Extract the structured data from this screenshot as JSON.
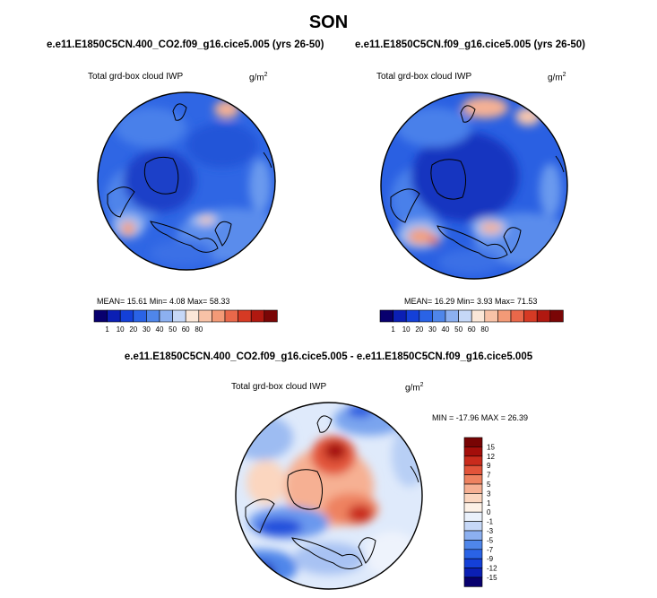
{
  "page_title": "SON",
  "palette": {
    "mean_colors": [
      "#08006e",
      "#0b1fb4",
      "#1440d8",
      "#2a63e6",
      "#4f86ea",
      "#8cb0f0",
      "#c6d8f7",
      "#fbe7d8",
      "#f8c2a7",
      "#f39a77",
      "#e9684a",
      "#d63a24",
      "#b01810",
      "#7a0606"
    ],
    "diff_colors": [
      "#08006e",
      "#0b1fb4",
      "#1440d8",
      "#2a63e6",
      "#4f86ea",
      "#8cb0f0",
      "#c6d8f7",
      "#eaf1fb",
      "#fdf1e6",
      "#fbd6bf",
      "#f6b093",
      "#ee8260",
      "#e2543a",
      "#c92b1c",
      "#a40e0a",
      "#780404"
    ]
  },
  "chart_data": [
    {
      "type": "heatmap",
      "projection": "north-polar-stereographic",
      "title": "e.e11.E1850C5CN.400_CO2.f09_g16.cice5.005 (yrs 26-50)",
      "variable": "Total grd-box cloud IWP",
      "units": "g/m",
      "units_sup": "2",
      "stats": {
        "text": "MEAN=  15.61  Min=   4.08  Max=  58.33",
        "mean": 15.61,
        "min": 4.08,
        "max": 58.33
      },
      "colorbar": {
        "orientation": "horizontal",
        "levels": [
          1,
          10,
          20,
          30,
          40,
          50,
          60,
          80
        ]
      }
    },
    {
      "type": "heatmap",
      "projection": "north-polar-stereographic",
      "title": "e.e11.E1850C5CN.f09_g16.cice5.005 (yrs 26-50)",
      "variable": "Total grd-box cloud IWP",
      "units": "g/m",
      "units_sup": "2",
      "stats": {
        "text": "MEAN=  16.29  Min=   3.93  Max=  71.53",
        "mean": 16.29,
        "min": 3.93,
        "max": 71.53
      },
      "colorbar": {
        "orientation": "horizontal",
        "levels": [
          1,
          10,
          20,
          30,
          40,
          50,
          60,
          80
        ]
      }
    },
    {
      "type": "heatmap",
      "projection": "north-polar-stereographic",
      "title": "e.e11.E1850C5CN.400_CO2.f09_g16.cice5.005 - e.e11.E1850C5CN.f09_g16.cice5.005",
      "variable": "Total grd-box cloud IWP",
      "units": "g/m",
      "units_sup": "2",
      "stats": {
        "text": "MIN = -17.96  MAX =  26.39",
        "min": -17.96,
        "max": 26.39
      },
      "colorbar": {
        "orientation": "vertical",
        "levels": [
          15,
          12,
          9,
          7,
          5,
          3,
          1,
          0,
          -1,
          -3,
          -5,
          -7,
          -9,
          -12,
          -15
        ]
      }
    }
  ]
}
